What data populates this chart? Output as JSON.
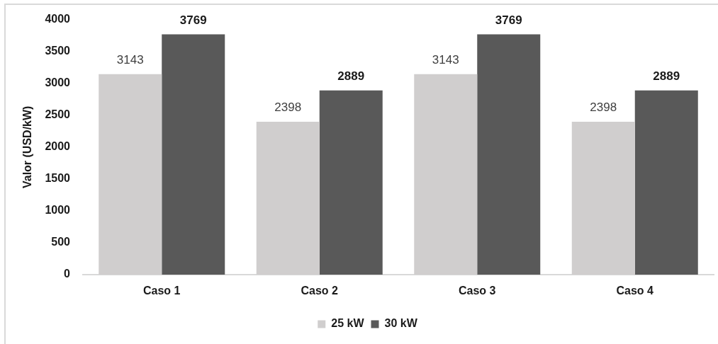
{
  "chart_data": {
    "type": "bar",
    "ylabel": "Valor (USD/kW)",
    "categories": [
      "Caso 1",
      "Caso 2",
      "Caso 3",
      "Caso 4"
    ],
    "series": [
      {
        "name": "25 kW",
        "color": "#d0cece",
        "values": [
          3143,
          2398,
          3143,
          2398
        ]
      },
      {
        "name": "30 kW",
        "color": "#595959",
        "values": [
          3769,
          2889,
          3769,
          2889
        ]
      }
    ],
    "ylim": [
      0,
      4000
    ],
    "yticks": [
      0,
      500,
      1000,
      1500,
      2000,
      2500,
      3000,
      3500,
      4000
    ],
    "grid": false,
    "legend": "bottom",
    "data_labels": true
  }
}
